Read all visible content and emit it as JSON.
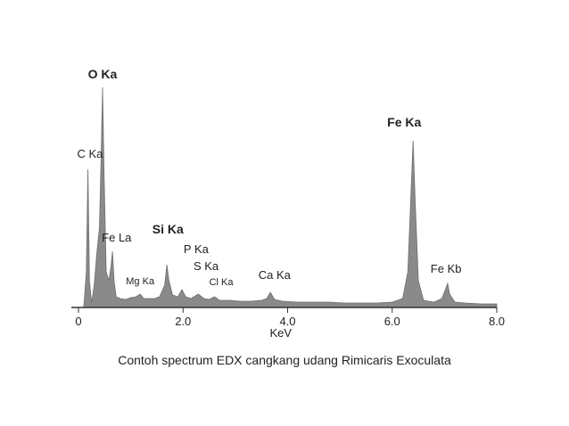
{
  "chart_data": {
    "type": "area",
    "title": "Contoh spectrum EDX cangkang udang Rimicaris Exoculata",
    "xlabel": "KeV",
    "color": "#8a8a8a",
    "xlim": [
      0,
      8
    ],
    "ylim": [
      0,
      250
    ],
    "xticks": [
      0,
      {
        "value": 2,
        "label": "2.0"
      },
      {
        "value": 4,
        "label": "4.0"
      },
      {
        "value": 6,
        "label": "6.0"
      },
      {
        "value": 8,
        "label": "8.0"
      }
    ],
    "x": [
      0.1,
      0.15,
      0.18,
      0.21,
      0.25,
      0.3,
      0.35,
      0.4,
      0.43,
      0.46,
      0.49,
      0.53,
      0.58,
      0.62,
      0.65,
      0.68,
      0.72,
      0.8,
      0.9,
      1.0,
      1.1,
      1.18,
      1.25,
      1.35,
      1.45,
      1.55,
      1.65,
      1.69,
      1.73,
      1.8,
      1.9,
      1.98,
      2.05,
      2.15,
      2.29,
      2.4,
      2.5,
      2.6,
      2.7,
      2.9,
      3.1,
      3.3,
      3.5,
      3.6,
      3.67,
      3.75,
      3.9,
      4.2,
      4.5,
      4.8,
      5.1,
      5.4,
      5.7,
      6.0,
      6.2,
      6.3,
      6.36,
      6.4,
      6.44,
      6.5,
      6.6,
      6.8,
      6.95,
      7.03,
      7.06,
      7.1,
      7.2,
      7.4,
      7.7,
      8.0
    ],
    "values": [
      0,
      40,
      155,
      30,
      5,
      25,
      60,
      90,
      160,
      247,
      150,
      40,
      30,
      45,
      63,
      30,
      12,
      10,
      9,
      11,
      12,
      15,
      10,
      10,
      10,
      12,
      25,
      48,
      30,
      14,
      12,
      20,
      12,
      10,
      15,
      10,
      9,
      12,
      8,
      8,
      7,
      7,
      8,
      10,
      17,
      9,
      7,
      6,
      6,
      6,
      5,
      5,
      5,
      6,
      10,
      40,
      130,
      187,
      120,
      30,
      8,
      6,
      10,
      22,
      27,
      15,
      6,
      5,
      4,
      4
    ],
    "annotations": [
      {
        "text": "O Ka",
        "x": 0.46,
        "y": 257,
        "bold": true
      },
      {
        "text": "C Ka",
        "x": 0.22,
        "y": 168
      },
      {
        "text": "Fe La",
        "x": 0.73,
        "y": 74
      },
      {
        "text": "Mg Ka",
        "x": 1.18,
        "y": 26
      },
      {
        "text": "Si Ka",
        "x": 1.71,
        "y": 83,
        "bold": true
      },
      {
        "text": "P Ka",
        "x": 2.25,
        "y": 61
      },
      {
        "text": "S Ka",
        "x": 2.44,
        "y": 42
      },
      {
        "text": "Cl Ka",
        "x": 2.73,
        "y": 25
      },
      {
        "text": "Ca Ka",
        "x": 3.75,
        "y": 32
      },
      {
        "text": "Fe Ka",
        "x": 6.23,
        "y": 203,
        "bold": true
      },
      {
        "text": "Fe Kb",
        "x": 7.03,
        "y": 39
      }
    ]
  }
}
